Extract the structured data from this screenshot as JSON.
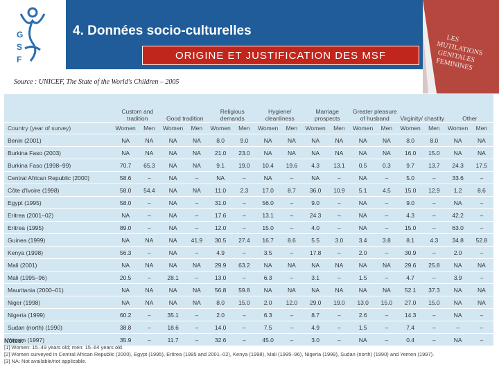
{
  "header": {
    "title": "4. Données socio-culturelles",
    "subtitle": "ORIGINE ET JUSTIFICATION  DES MSF",
    "logo_letters": [
      "G",
      "S",
      "F"
    ],
    "book_lines": [
      "LES",
      "MUTILATIONS",
      "GENITALES",
      "FEMININES"
    ]
  },
  "source": "Source : UNICEF, The State of the World's Children – 2005",
  "table": {
    "country_header": "Country (year of survey)",
    "groups": [
      "Custom and tradition",
      "Good tradition",
      "Religious demands",
      "Hygiene/ cleanliness",
      "Marriage prospects",
      "Greater pleasure of husband",
      "Virginity/ chastity",
      "Other"
    ],
    "sexes": [
      "Women",
      "Men"
    ],
    "rows": [
      [
        "Benin (2001)",
        "NA",
        "NA",
        "NA",
        "NA",
        "8.0",
        "9.0",
        "NA",
        "NA",
        "NA",
        "NA",
        "NA",
        "NA",
        "8.0",
        "8.0",
        "NA",
        "NA"
      ],
      [
        "Burkina Faso (2003)",
        "NA",
        "NA",
        "NA",
        "NA",
        "21.0",
        "23.0",
        "NA",
        "NA",
        "NA",
        "NA",
        "NA",
        "NA",
        "16.0",
        "15.0",
        "NA",
        "NA"
      ],
      [
        "Burkina Faso (1998–99)",
        "70.7",
        "65.3",
        "NA",
        "NA",
        "9.1",
        "19.0",
        "10.4",
        "19.6",
        "4.3",
        "13.1",
        "0.5",
        "0.3",
        "9.7",
        "13.7",
        "24.3",
        "17.5"
      ],
      [
        "Central African Republic (2000)",
        "58.6",
        "–",
        "NA",
        "–",
        "NA",
        "–",
        "NA",
        "–",
        "NA",
        "–",
        "NA",
        "–",
        "5.0",
        "–",
        "33.6",
        "–"
      ],
      [
        "Côte d'Ivoire (1998)",
        "58.0",
        "54.4",
        "NA",
        "NA",
        "11.0",
        "2.3",
        "17.0",
        "8.7",
        "36.0",
        "10.9",
        "5.1",
        "4.5",
        "15.0",
        "12.9",
        "1.2",
        "8.6"
      ],
      [
        "Egypt (1995)",
        "58.0",
        "–",
        "NA",
        "–",
        "31.0",
        "–",
        "56.0",
        "–",
        "9.0",
        "–",
        "NA",
        "–",
        "9.0",
        "–",
        "NA",
        "–"
      ],
      [
        "Eritrea (2001–02)",
        "NA",
        "–",
        "NA",
        "–",
        "17.6",
        "–",
        "13.1",
        "–",
        "24.3",
        "–",
        "NA",
        "–",
        "4.3",
        "–",
        "42.2",
        "–"
      ],
      [
        "Eritrea (1995)",
        "89.0",
        "–",
        "NA",
        "–",
        "12.0",
        "–",
        "15.0",
        "–",
        "4.0",
        "–",
        "NA",
        "–",
        "15.0",
        "–",
        "63.0",
        "–"
      ],
      [
        "Guinea (1999)",
        "NA",
        "NA",
        "NA",
        "41.9",
        "30.5",
        "27.4",
        "16.7",
        "8.6",
        "5.5",
        "3.0",
        "3.4",
        "3.8",
        "8.1",
        "4.3",
        "34.8",
        "52.8"
      ],
      [
        "Kenya (1998)",
        "56.3",
        "–",
        "NA",
        "–",
        "4.9",
        "–",
        "3.5",
        "–",
        "17.8",
        "–",
        "2.0",
        "–",
        "30.9",
        "–",
        "2.0",
        "–"
      ],
      [
        "Mali (2001)",
        "NA",
        "NA",
        "NA",
        "NA",
        "29.9",
        "63.2",
        "NA",
        "NA",
        "NA",
        "NA",
        "NA",
        "NA",
        "29.6",
        "25.8",
        "NA",
        "NA"
      ],
      [
        "Mali (1995–96)",
        "20.5",
        "–",
        "28.1",
        "–",
        "13.0",
        "–",
        "6.3",
        "–",
        "3.1",
        "–",
        "1.5",
        "–",
        "4.7",
        "–",
        "3.9",
        "–"
      ],
      [
        "Mauritania (2000–01)",
        "NA",
        "NA",
        "NA",
        "NA",
        "56.8",
        "59.8",
        "NA",
        "NA",
        "NA",
        "NA",
        "NA",
        "NA",
        "52.1",
        "37.3",
        "NA",
        "NA"
      ],
      [
        "Niger (1998)",
        "NA",
        "NA",
        "NA",
        "NA",
        "8.0",
        "15.0",
        "2.0",
        "12.0",
        "29.0",
        "19.0",
        "13.0",
        "15.0",
        "27.0",
        "15.0",
        "NA",
        "NA"
      ],
      [
        "Nigeria (1999)",
        "60.2",
        "–",
        "35.1",
        "–",
        "2.0",
        "–",
        "6.3",
        "–",
        "8.7",
        "–",
        "2.6",
        "–",
        "14.3",
        "–",
        "NA",
        "–"
      ],
      [
        "Sudan (north) (1990)",
        "38.8",
        "–",
        "18.6",
        "–",
        "14.0",
        "–",
        "7.5",
        "–",
        "4.9",
        "–",
        "1.5",
        "–",
        "7.4",
        "–",
        "–",
        "–"
      ],
      [
        "Yemen (1997)",
        "35.9",
        "–",
        "11.7",
        "–",
        "32.6",
        "–",
        "45.0",
        "–",
        "3.0",
        "–",
        "NA",
        "–",
        "0.4",
        "–",
        "NA",
        "–"
      ]
    ]
  },
  "notes": {
    "title": "Notes:",
    "items": [
      "[1]  Women: 15–49 years old; men: 15–64 years old.",
      "[2]  Women surveyed in Central African Republic (2000), Egypt (1995), Eritrea (1995 and 2001–02), Kenya (1998), Mali (1995–96), Nigeria (1999), Sudan (north) (1990) and Yemen (1997).",
      "[3]  NA: Not available/not applicable."
    ]
  }
}
